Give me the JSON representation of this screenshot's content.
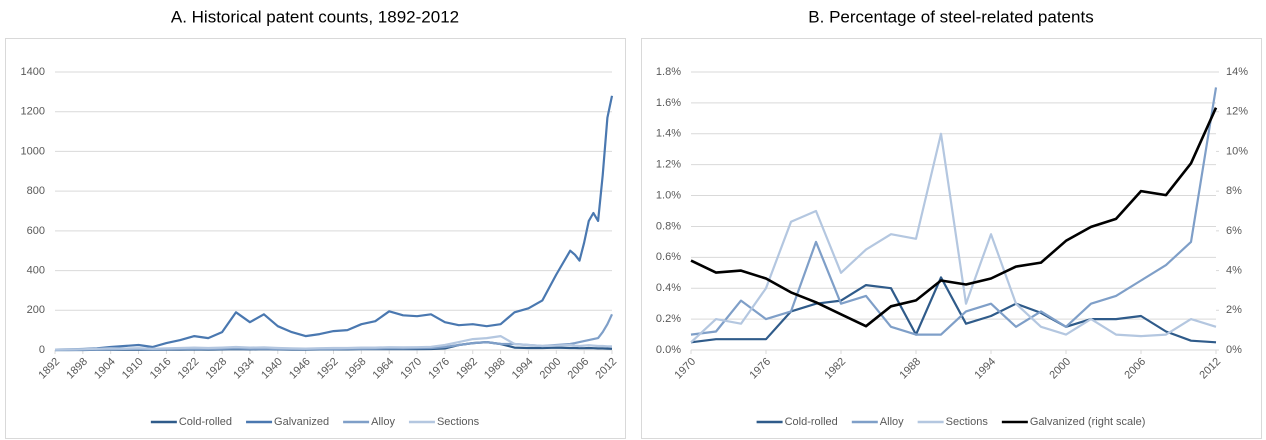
{
  "chart_data": [
    {
      "type": "line",
      "title": "A. Historical patent counts, 1892-2012",
      "x": [
        1892,
        1895,
        1898,
        1901,
        1904,
        1907,
        1910,
        1913,
        1916,
        1919,
        1922,
        1925,
        1928,
        1931,
        1934,
        1937,
        1940,
        1943,
        1946,
        1949,
        1952,
        1955,
        1958,
        1961,
        1964,
        1967,
        1970,
        1973,
        1976,
        1979,
        1982,
        1985,
        1988,
        1991,
        1994,
        1997,
        2000,
        2003,
        2004,
        2005,
        2006,
        2007,
        2008,
        2009,
        2010,
        2011,
        2012
      ],
      "xlim": [
        1892,
        2012
      ],
      "xticks": [
        1892,
        1898,
        1904,
        1910,
        1916,
        1922,
        1928,
        1934,
        1940,
        1946,
        1952,
        1958,
        1964,
        1970,
        1976,
        1982,
        1988,
        1994,
        2000,
        2006,
        2012
      ],
      "ylim": [
        0,
        1400
      ],
      "yticks": [
        0,
        200,
        400,
        600,
        800,
        1000,
        1200,
        1400
      ],
      "grid": true,
      "legend": "bottom",
      "series": [
        {
          "name": "Cold-rolled",
          "color": "#2f5b8a",
          "values": [
            0,
            0,
            0,
            1,
            1,
            1,
            2,
            1,
            2,
            2,
            3,
            2,
            3,
            4,
            3,
            4,
            3,
            2,
            2,
            3,
            3,
            3,
            4,
            4,
            5,
            4,
            4,
            5,
            8,
            25,
            35,
            40,
            30,
            12,
            10,
            10,
            12,
            10,
            10,
            9,
            9,
            10,
            9,
            8,
            8,
            7,
            6
          ]
        },
        {
          "name": "Galvanized",
          "color": "#4a78b0",
          "values": [
            2,
            3,
            5,
            8,
            15,
            20,
            25,
            15,
            35,
            50,
            70,
            60,
            90,
            190,
            140,
            180,
            120,
            90,
            70,
            80,
            95,
            100,
            130,
            145,
            195,
            175,
            170,
            180,
            140,
            125,
            130,
            120,
            130,
            190,
            210,
            250,
            380,
            500,
            480,
            450,
            540,
            650,
            690,
            650,
            880,
            1170,
            1280
          ]
        },
        {
          "name": "Alloy",
          "color": "#7f9fc8",
          "values": [
            0,
            0,
            1,
            2,
            3,
            4,
            4,
            3,
            4,
            5,
            6,
            5,
            6,
            8,
            6,
            7,
            5,
            4,
            4,
            5,
            5,
            6,
            6,
            7,
            8,
            8,
            9,
            10,
            15,
            25,
            35,
            40,
            30,
            30,
            25,
            20,
            25,
            30,
            35,
            40,
            45,
            50,
            55,
            60,
            90,
            130,
            180
          ]
        },
        {
          "name": "Sections",
          "color": "#b4c7e0",
          "values": [
            2,
            3,
            4,
            6,
            8,
            7,
            9,
            6,
            8,
            10,
            12,
            10,
            12,
            15,
            12,
            13,
            10,
            8,
            7,
            9,
            10,
            10,
            12,
            12,
            14,
            13,
            14,
            16,
            25,
            40,
            55,
            60,
            70,
            30,
            25,
            20,
            22,
            25,
            22,
            20,
            22,
            24,
            22,
            20,
            20,
            18,
            18
          ]
        }
      ]
    },
    {
      "type": "line",
      "title": "B. Percentage of steel-related patents",
      "x": [
        1970,
        1972,
        1974,
        1976,
        1978,
        1980,
        1982,
        1984,
        1986,
        1988,
        1990,
        1992,
        1994,
        1996,
        1998,
        2000,
        2002,
        2004,
        2006,
        2008,
        2010,
        2012
      ],
      "xlim": [
        1970,
        2012
      ],
      "xticks": [
        1970,
        1976,
        1982,
        1988,
        1994,
        2000,
        2006,
        2012
      ],
      "ylim": [
        0,
        1.8
      ],
      "yticks": [
        {
          "value": 0,
          "label": "0.0%"
        },
        {
          "value": 0.2,
          "label": "0.2%"
        },
        {
          "value": 0.4,
          "label": "0.4%"
        },
        {
          "value": 0.6,
          "label": "0.6%"
        },
        {
          "value": 0.8,
          "label": "0.8%"
        },
        {
          "value": 1.0,
          "label": "1.0%"
        },
        {
          "value": 1.2,
          "label": "1.2%"
        },
        {
          "value": 1.4,
          "label": "1.4%"
        },
        {
          "value": 1.6,
          "label": "1.6%"
        },
        {
          "value": 1.8,
          "label": "1.8%"
        }
      ],
      "y2lim": [
        0,
        14
      ],
      "y2ticks": [
        {
          "value": 0,
          "label": "0%"
        },
        {
          "value": 2,
          "label": "2%"
        },
        {
          "value": 4,
          "label": "4%"
        },
        {
          "value": 6,
          "label": "6%"
        },
        {
          "value": 8,
          "label": "8%"
        },
        {
          "value": 10,
          "label": "10%"
        },
        {
          "value": 12,
          "label": "12%"
        },
        {
          "value": 14,
          "label": "14%"
        }
      ],
      "grid": true,
      "legend": "bottom",
      "series": [
        {
          "name": "Cold-rolled",
          "color": "#2f5b8a",
          "values": [
            0.05,
            0.07,
            0.07,
            0.07,
            0.25,
            0.3,
            0.32,
            0.42,
            0.4,
            0.1,
            0.47,
            0.17,
            0.22,
            0.3,
            0.24,
            0.15,
            0.2,
            0.2,
            0.22,
            0.12,
            0.06,
            0.05
          ]
        },
        {
          "name": "Alloy",
          "color": "#7f9fc8",
          "values": [
            0.1,
            0.12,
            0.32,
            0.2,
            0.25,
            0.7,
            0.3,
            0.35,
            0.15,
            0.1,
            0.1,
            0.25,
            0.3,
            0.15,
            0.25,
            0.15,
            0.3,
            0.35,
            0.45,
            0.55,
            0.7,
            1.7
          ]
        },
        {
          "name": "Sections",
          "color": "#b4c7e0",
          "values": [
            0.05,
            0.2,
            0.17,
            0.4,
            0.83,
            0.9,
            0.5,
            0.65,
            0.75,
            0.72,
            1.4,
            0.3,
            0.75,
            0.3,
            0.15,
            0.1,
            0.2,
            0.1,
            0.09,
            0.1,
            0.2,
            0.15
          ]
        },
        {
          "name": "Galvanized (right scale)",
          "color": "#000000",
          "axis": "y2",
          "values": [
            4.5,
            3.9,
            4.0,
            3.6,
            2.9,
            2.4,
            1.8,
            1.2,
            2.2,
            2.5,
            3.5,
            3.3,
            3.6,
            4.2,
            4.4,
            5.5,
            6.2,
            6.6,
            8.0,
            7.8,
            9.4,
            12.2
          ]
        }
      ]
    }
  ]
}
